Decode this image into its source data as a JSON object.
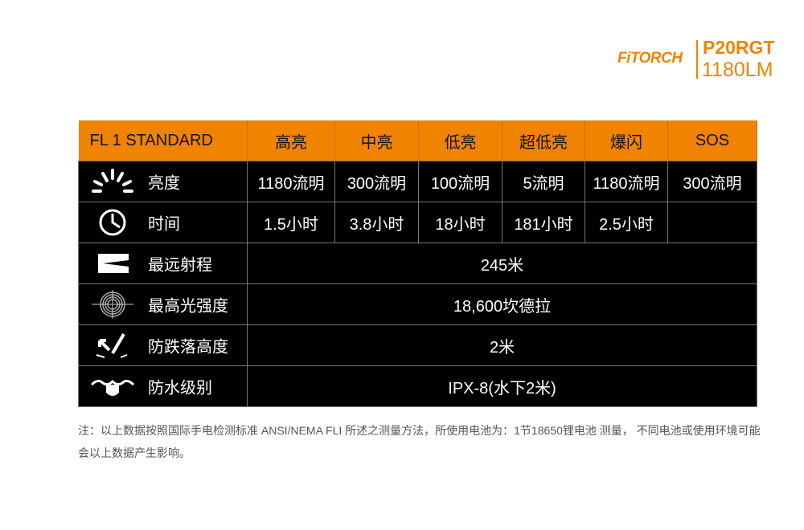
{
  "logo": {
    "brand": "FiTORCH",
    "model": "P20RGT",
    "lumens": "1180LM",
    "color": "#f08300"
  },
  "table": {
    "header": [
      "FL 1 STANDARD",
      "高亮",
      "中亮",
      "低亮",
      "超低亮",
      "爆闪",
      "SOS"
    ],
    "rows": [
      {
        "icon": "brightness-icon",
        "label": "亮度",
        "values": [
          "1180流明",
          "300流明",
          "100流明",
          "5流明",
          "1180流明",
          "300流明"
        ]
      },
      {
        "icon": "clock-icon",
        "label": "时间",
        "values": [
          "1.5小时",
          "3.8小时",
          "18小时",
          "181小时",
          "2.5小时",
          ""
        ]
      },
      {
        "icon": "beam-distance-icon",
        "label": "最远射程",
        "span": "245米"
      },
      {
        "icon": "target-intensity-icon",
        "label": "最高光强度",
        "span": "18,600坎德拉"
      },
      {
        "icon": "impact-resistance-icon",
        "label": "防跌落高度",
        "span": "2米"
      },
      {
        "icon": "waterproof-icon",
        "label": "防水级别",
        "span": "IPX-8(水下2米)"
      }
    ]
  },
  "note": "注：以上数据按照国际手电检测标准 ANSI/NEMA FLI 所述之测量方法，所使用电池为：1节18650锂电池 测量， 不同电池或使用环境可能会以上数据产生影响。"
}
